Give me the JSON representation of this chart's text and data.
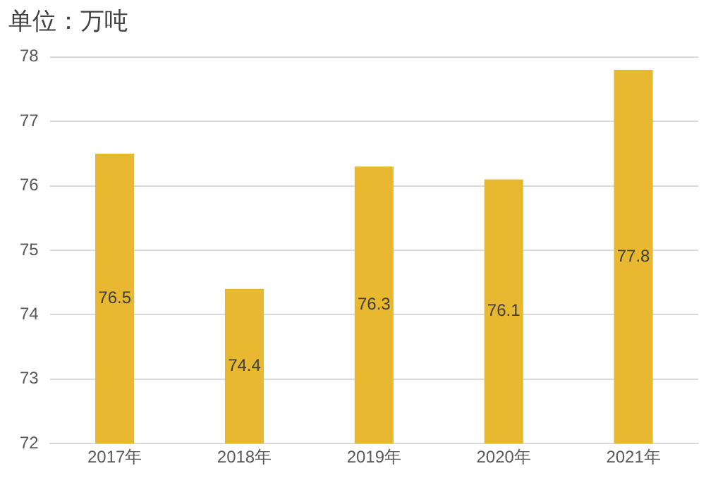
{
  "chart_data": {
    "type": "bar",
    "title": "单位：万吨",
    "categories": [
      "2017年",
      "2018年",
      "2019年",
      "2020年",
      "2021年"
    ],
    "values": [
      76.5,
      74.4,
      76.3,
      76.1,
      77.8
    ],
    "color": "#e8b830",
    "ylim": [
      72,
      78
    ],
    "yticks": [
      72,
      73,
      74,
      75,
      76,
      77,
      78
    ],
    "grid": "y",
    "data_labels": true
  }
}
